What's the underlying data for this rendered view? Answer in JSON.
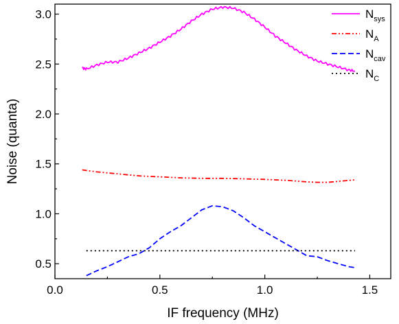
{
  "chart_data": {
    "type": "line",
    "xlabel": "IF frequency (MHz)",
    "ylabel": "Noise (quanta)",
    "xlim": [
      0.0,
      1.6
    ],
    "ylim": [
      0.35,
      3.1
    ],
    "xticks": [
      0.0,
      0.5,
      1.0,
      1.5
    ],
    "xtick_labels": [
      "0.0",
      "0.5",
      "1.0",
      "1.5"
    ],
    "yticks": [
      0.5,
      1.0,
      1.5,
      2.0,
      2.5,
      3.0
    ],
    "ytick_labels": [
      "0.5",
      "1.0",
      "1.5",
      "2.0",
      "2.5",
      "3.0"
    ],
    "grid": false,
    "legend_position": "top-right",
    "series": [
      {
        "name": "N",
        "sub": "sys",
        "color": "#ff00ff",
        "dash": "solid",
        "x": [
          0.13,
          0.15,
          0.2,
          0.25,
          0.3,
          0.35,
          0.4,
          0.45,
          0.5,
          0.55,
          0.6,
          0.65,
          0.7,
          0.75,
          0.8,
          0.85,
          0.9,
          0.95,
          1.0,
          1.05,
          1.1,
          1.15,
          1.2,
          1.25,
          1.3,
          1.35,
          1.4,
          1.43
        ],
        "y": [
          2.46,
          2.45,
          2.49,
          2.52,
          2.52,
          2.56,
          2.61,
          2.66,
          2.72,
          2.78,
          2.85,
          2.93,
          3.0,
          3.05,
          3.07,
          3.06,
          3.02,
          2.95,
          2.87,
          2.78,
          2.71,
          2.64,
          2.58,
          2.53,
          2.5,
          2.47,
          2.44,
          2.43
        ]
      },
      {
        "name": "N",
        "sub": "A",
        "color": "#ff0000",
        "dash": "dashdotdot",
        "x": [
          0.13,
          0.2,
          0.3,
          0.4,
          0.5,
          0.6,
          0.7,
          0.8,
          0.9,
          1.0,
          1.1,
          1.2,
          1.25,
          1.3,
          1.35,
          1.43
        ],
        "y": [
          1.44,
          1.42,
          1.4,
          1.38,
          1.37,
          1.36,
          1.355,
          1.355,
          1.35,
          1.345,
          1.335,
          1.32,
          1.315,
          1.315,
          1.325,
          1.34
        ]
      },
      {
        "name": "N",
        "sub": "cav",
        "color": "#0000ff",
        "dash": "dash",
        "x": [
          0.15,
          0.2,
          0.25,
          0.3,
          0.35,
          0.4,
          0.45,
          0.5,
          0.55,
          0.6,
          0.65,
          0.7,
          0.75,
          0.8,
          0.85,
          0.9,
          0.95,
          1.0,
          1.05,
          1.1,
          1.15,
          1.2,
          1.25,
          1.3,
          1.35,
          1.4,
          1.43
        ],
        "y": [
          0.38,
          0.43,
          0.47,
          0.52,
          0.57,
          0.6,
          0.66,
          0.75,
          0.82,
          0.88,
          0.96,
          1.04,
          1.08,
          1.07,
          1.03,
          0.96,
          0.88,
          0.82,
          0.76,
          0.7,
          0.64,
          0.58,
          0.57,
          0.53,
          0.5,
          0.47,
          0.46
        ]
      },
      {
        "name": "N",
        "sub": "C",
        "color": "#000000",
        "dash": "dot",
        "x": [
          0.15,
          1.43
        ],
        "y": [
          0.63,
          0.63
        ]
      }
    ]
  }
}
